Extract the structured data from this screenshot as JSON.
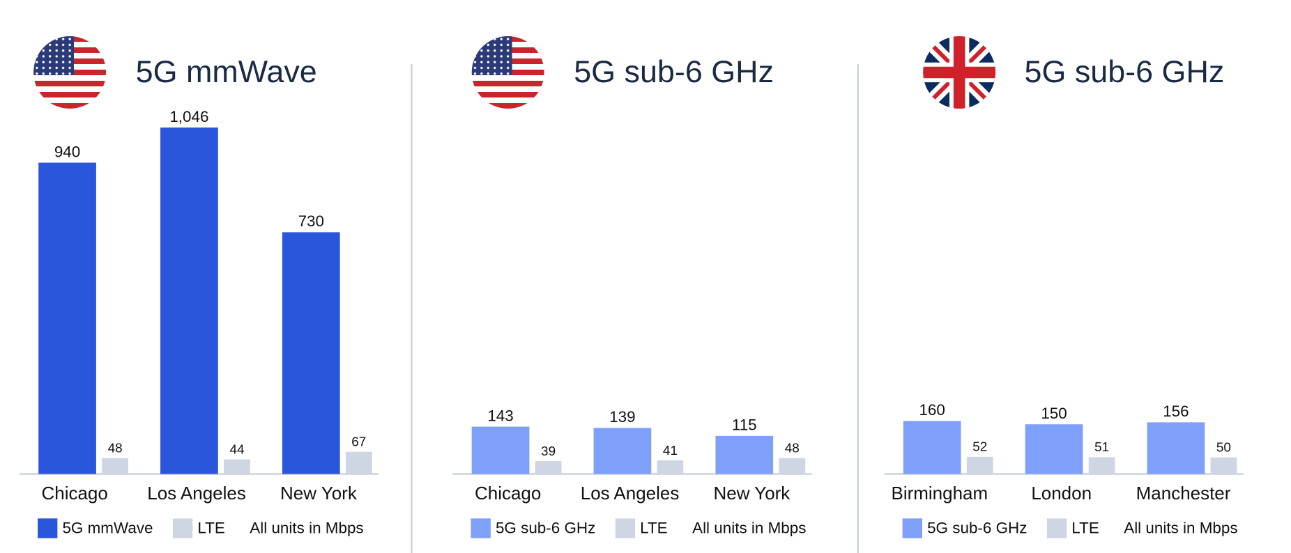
{
  "chart_data": [
    {
      "type": "bar",
      "title": "5G mmWave",
      "categories": [
        "Chicago",
        "Los Angeles",
        "New York"
      ],
      "series": [
        {
          "name": "5G mmWave",
          "color": "#2a56dc",
          "values": [
            940,
            1046,
            730
          ],
          "value_labels": [
            "940",
            "1,046",
            "730"
          ]
        },
        {
          "name": "LTE",
          "color": "#cfd6e3",
          "values": [
            48,
            44,
            67
          ]
        }
      ],
      "note": "All units in Mbps"
    },
    {
      "type": "bar",
      "title": "5G sub-6 GHz",
      "categories": [
        "Chicago",
        "Los Angeles",
        "New York"
      ],
      "series": [
        {
          "name": "5G sub-6 GHz",
          "color": "#7fa0fa",
          "values": [
            143,
            139,
            115
          ]
        },
        {
          "name": "LTE",
          "color": "#cfd6e3",
          "values": [
            39,
            41,
            48
          ]
        }
      ],
      "note": "All units in Mbps"
    },
    {
      "type": "bar",
      "title": "5G sub-6 GHz",
      "categories": [
        "Birmingham",
        "London",
        "Manchester"
      ],
      "series": [
        {
          "name": "5G sub-6 GHz",
          "color": "#7fa0fa",
          "values": [
            160,
            150,
            156
          ]
        },
        {
          "name": "LTE",
          "color": "#cfd6e3",
          "values": [
            52,
            51,
            50
          ]
        }
      ],
      "note": "All units in Mbps"
    }
  ]
}
